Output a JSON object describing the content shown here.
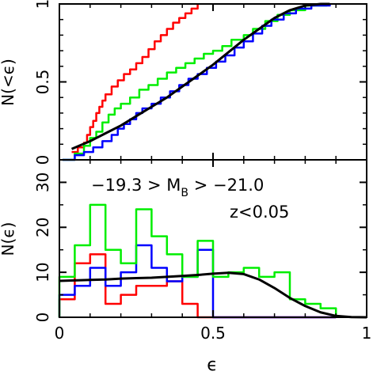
{
  "chart_data": [
    {
      "type": "line",
      "panel": "top",
      "title": "",
      "xlabel": "",
      "ylabel": "N(<ϵ)",
      "xlim": [
        0,
        1
      ],
      "ylim": [
        0,
        1
      ],
      "x_ticks": [
        "0",
        "0.5",
        "1"
      ],
      "show_x_tick_labels": false,
      "y_ticks": [
        "0",
        "0.5",
        "1"
      ],
      "grid": false,
      "series": [
        {
          "color": "#ff0000",
          "style": "step",
          "points": [
            [
              0.04,
              0.05
            ],
            [
              0.06,
              0.08
            ],
            [
              0.08,
              0.11
            ],
            [
              0.09,
              0.16
            ],
            [
              0.1,
              0.21
            ],
            [
              0.11,
              0.25
            ],
            [
              0.12,
              0.3
            ],
            [
              0.13,
              0.34
            ],
            [
              0.14,
              0.38
            ],
            [
              0.15,
              0.42
            ],
            [
              0.17,
              0.47
            ],
            [
              0.19,
              0.51
            ],
            [
              0.21,
              0.55
            ],
            [
              0.23,
              0.58
            ],
            [
              0.25,
              0.62
            ],
            [
              0.27,
              0.66
            ],
            [
              0.29,
              0.71
            ],
            [
              0.31,
              0.76
            ],
            [
              0.33,
              0.8
            ],
            [
              0.35,
              0.84
            ],
            [
              0.37,
              0.88
            ],
            [
              0.39,
              0.91
            ],
            [
              0.41,
              0.94
            ],
            [
              0.43,
              0.97
            ],
            [
              0.45,
              1.0
            ]
          ]
        },
        {
          "color": "#00ee00",
          "style": "step",
          "points": [
            [
              0.01,
              0.0
            ],
            [
              0.05,
              0.04
            ],
            [
              0.08,
              0.09
            ],
            [
              0.1,
              0.14
            ],
            [
              0.12,
              0.18
            ],
            [
              0.14,
              0.24
            ],
            [
              0.16,
              0.29
            ],
            [
              0.18,
              0.33
            ],
            [
              0.2,
              0.36
            ],
            [
              0.23,
              0.4
            ],
            [
              0.26,
              0.45
            ],
            [
              0.29,
              0.48
            ],
            [
              0.32,
              0.52
            ],
            [
              0.35,
              0.56
            ],
            [
              0.38,
              0.59
            ],
            [
              0.41,
              0.62
            ],
            [
              0.44,
              0.65
            ],
            [
              0.47,
              0.68
            ],
            [
              0.5,
              0.7
            ],
            [
              0.53,
              0.73
            ],
            [
              0.56,
              0.77
            ],
            [
              0.6,
              0.8
            ],
            [
              0.63,
              0.84
            ],
            [
              0.67,
              0.89
            ],
            [
              0.71,
              0.93
            ],
            [
              0.75,
              0.96
            ],
            [
              0.8,
              0.99
            ],
            [
              0.87,
              1.0
            ]
          ]
        },
        {
          "color": "#0000ff",
          "style": "step",
          "points": [
            [
              0.01,
              0.0
            ],
            [
              0.05,
              0.03
            ],
            [
              0.08,
              0.05
            ],
            [
              0.11,
              0.08
            ],
            [
              0.14,
              0.12
            ],
            [
              0.17,
              0.16
            ],
            [
              0.19,
              0.2
            ],
            [
              0.21,
              0.23
            ],
            [
              0.23,
              0.26
            ],
            [
              0.25,
              0.3
            ],
            [
              0.27,
              0.33
            ],
            [
              0.3,
              0.36
            ],
            [
              0.33,
              0.4
            ],
            [
              0.36,
              0.44
            ],
            [
              0.39,
              0.48
            ],
            [
              0.42,
              0.52
            ],
            [
              0.45,
              0.55
            ],
            [
              0.48,
              0.59
            ],
            [
              0.51,
              0.63
            ],
            [
              0.54,
              0.67
            ],
            [
              0.57,
              0.72
            ],
            [
              0.6,
              0.76
            ],
            [
              0.63,
              0.81
            ],
            [
              0.66,
              0.86
            ],
            [
              0.69,
              0.9
            ],
            [
              0.73,
              0.94
            ],
            [
              0.77,
              0.97
            ],
            [
              0.82,
              0.99
            ],
            [
              0.88,
              1.0
            ]
          ]
        },
        {
          "color": "#000000",
          "style": "smooth",
          "points": [
            [
              0.04,
              0.07
            ],
            [
              0.1,
              0.12
            ],
            [
              0.15,
              0.17
            ],
            [
              0.2,
              0.22
            ],
            [
              0.25,
              0.28
            ],
            [
              0.3,
              0.34
            ],
            [
              0.35,
              0.4
            ],
            [
              0.4,
              0.47
            ],
            [
              0.45,
              0.54
            ],
            [
              0.5,
              0.61
            ],
            [
              0.55,
              0.69
            ],
            [
              0.6,
              0.77
            ],
            [
              0.65,
              0.84
            ],
            [
              0.7,
              0.91
            ],
            [
              0.75,
              0.96
            ],
            [
              0.8,
              0.99
            ],
            [
              0.85,
              1.0
            ],
            [
              0.88,
              1.0
            ]
          ]
        }
      ]
    },
    {
      "type": "line",
      "panel": "bottom",
      "title": "",
      "xlabel": "ϵ",
      "ylabel": "N(ϵ)",
      "xlim": [
        0,
        1
      ],
      "ylim": [
        0,
        35
      ],
      "x_ticks": [
        "0",
        "0.5",
        "1"
      ],
      "y_ticks": [
        "0",
        "10",
        "20",
        "30"
      ],
      "grid": false,
      "annotations": [
        {
          "parts": [
            "−19.3 > M",
            "B",
            " > −21.0"
          ]
        },
        {
          "parts": [
            "z<0.05"
          ]
        }
      ],
      "bin_edges": [
        0,
        0.05,
        0.1,
        0.15,
        0.2,
        0.25,
        0.3,
        0.35,
        0.4,
        0.45,
        0.5,
        0.55,
        0.6,
        0.65,
        0.7,
        0.75,
        0.8,
        0.85,
        0.9
      ],
      "series": [
        {
          "color": "#ff0000",
          "style": "histogram",
          "values": [
            4,
            12,
            14,
            3,
            5,
            7,
            7,
            8,
            3,
            0,
            0,
            0,
            0,
            0,
            0,
            0,
            0,
            0
          ]
        },
        {
          "color": "#0000ff",
          "style": "histogram",
          "values": [
            5,
            7,
            11,
            7,
            10,
            16,
            11,
            8,
            9,
            15,
            0,
            0,
            0,
            0,
            0,
            0,
            0,
            0
          ]
        },
        {
          "color": "#00ee00",
          "style": "histogram",
          "values": [
            9,
            16,
            25,
            15,
            12,
            24,
            18,
            14,
            9,
            17,
            9,
            10,
            11,
            9,
            10,
            4,
            3,
            2
          ]
        },
        {
          "color": "#000000",
          "style": "smooth",
          "points": [
            [
              0.0,
              8.1
            ],
            [
              0.05,
              8.2
            ],
            [
              0.1,
              8.3
            ],
            [
              0.15,
              8.4
            ],
            [
              0.2,
              8.6
            ],
            [
              0.25,
              8.7
            ],
            [
              0.3,
              8.8
            ],
            [
              0.35,
              9.0
            ],
            [
              0.4,
              9.2
            ],
            [
              0.45,
              9.4
            ],
            [
              0.5,
              9.7
            ],
            [
              0.55,
              9.9
            ],
            [
              0.6,
              9.6
            ],
            [
              0.65,
              8.4
            ],
            [
              0.7,
              6.5
            ],
            [
              0.75,
              4.3
            ],
            [
              0.8,
              2.5
            ],
            [
              0.85,
              1.1
            ],
            [
              0.9,
              0.3
            ],
            [
              0.95,
              0.05
            ],
            [
              1.0,
              0.0
            ]
          ]
        }
      ]
    }
  ]
}
